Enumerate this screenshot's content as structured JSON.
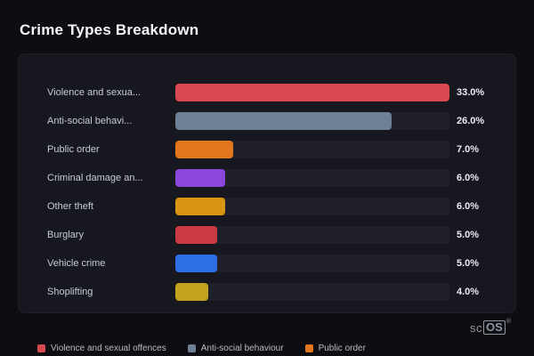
{
  "page": {
    "title": "Crime Types Breakdown"
  },
  "chart_data": {
    "type": "bar",
    "orientation": "horizontal",
    "title": "Crime Types Breakdown",
    "categories": [
      "Violence and sexua...",
      "Anti-social behavi...",
      "Public order",
      "Criminal damage an...",
      "Other theft",
      "Burglary",
      "Vehicle crime",
      "Shoplifting"
    ],
    "values": [
      33.0,
      26.0,
      7.0,
      6.0,
      6.0,
      5.0,
      5.0,
      4.0
    ],
    "value_labels": [
      "33.0%",
      "26.0%",
      "7.0%",
      "6.0%",
      "6.0%",
      "5.0%",
      "5.0%",
      "4.0%"
    ],
    "bar_colors": [
      "#d94a50",
      "#6d8096",
      "#e2771d",
      "#8b46dc",
      "#d79512",
      "#c93a43",
      "#2e6ee4",
      "#c2a31d"
    ],
    "xlim": [
      0,
      33
    ],
    "track_color": "#20202a",
    "grid": false,
    "legend_position": "bottom",
    "legend": [
      {
        "label": "Violence and sexual offences",
        "color": "#d94a50"
      },
      {
        "label": "Anti-social behaviour",
        "color": "#6d8096"
      },
      {
        "label": "Public order",
        "color": "#e2771d"
      }
    ]
  },
  "branding": {
    "prefix": "sc",
    "box": "OS",
    "registered": "®"
  }
}
